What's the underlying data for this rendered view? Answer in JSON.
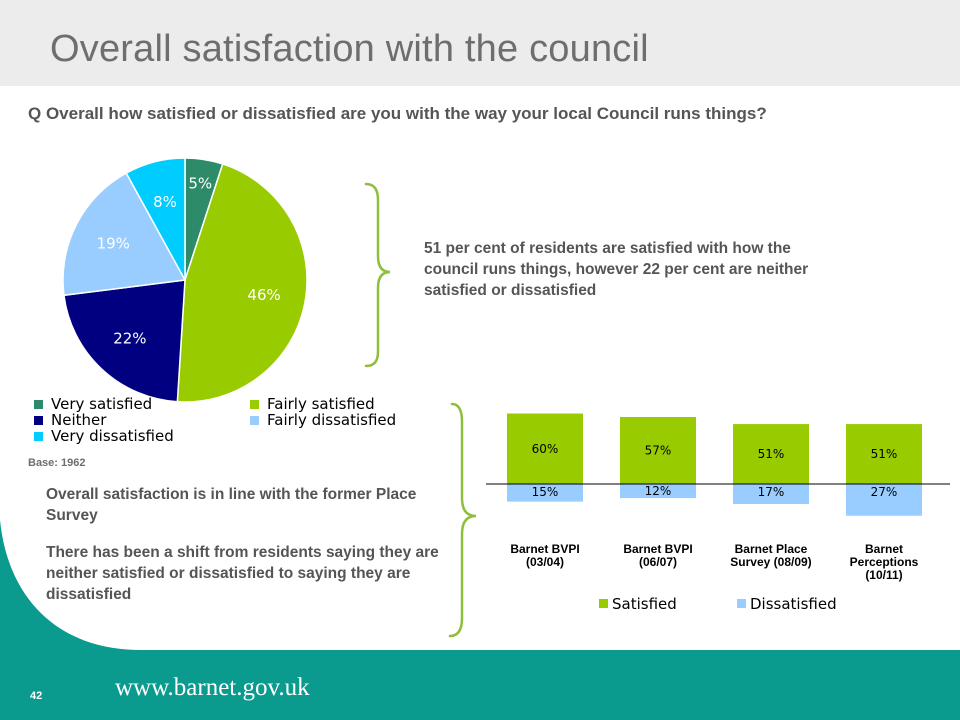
{
  "slide": {
    "title": "Overall satisfaction with the council",
    "question": "Q Overall how satisfied or dissatisfied are you with the way your local Council runs things?",
    "base": "Base: 1962",
    "summary": "51 per cent of residents are satisfied with how the council runs things, however 22 per cent are neither satisfied or dissatisfied",
    "notes": [
      "Overall satisfaction is in line with the former Place Survey",
      "There has been a shift from residents saying they are neither satisfied or dissatisfied to saying they are dissatisfied"
    ],
    "page_number": "42",
    "footer_url": "www.barnet.gov.uk"
  },
  "colors": {
    "very_satisfied": "#2e8b6a",
    "fairly_satisfied": "#99cc00",
    "neither": "#000080",
    "fairly_dissatisfied": "#99ccff",
    "very_dissatisfied": "#00ccff",
    "teal": "#0a9a8e",
    "brace": "#8fbf3a"
  },
  "chart_data": [
    {
      "type": "pie",
      "slices": [
        {
          "name": "Very satisfied",
          "value": 5,
          "label": "5%",
          "color": "#2e8b6a"
        },
        {
          "name": "Fairly satisfied",
          "value": 46,
          "label": "46%",
          "color": "#99cc00"
        },
        {
          "name": "Neither",
          "value": 22,
          "label": "22%",
          "color": "#000080"
        },
        {
          "name": "Fairly dissatisfied",
          "value": 19,
          "label": "19%",
          "color": "#99ccff"
        },
        {
          "name": "Very dissatisfied",
          "value": 8,
          "label": "8%",
          "color": "#00ccff"
        }
      ],
      "legend": [
        "Very satisfied",
        "Fairly satisfied",
        "Neither",
        "Fairly dissatisfied",
        "Very dissatisfied"
      ],
      "legend_position": "bottom"
    },
    {
      "type": "bar",
      "categories": [
        [
          "Barnet BVPI",
          "(03/04)"
        ],
        [
          "Barnet BVPI",
          "(06/07)"
        ],
        [
          "Barnet Place",
          "Survey (08/09)"
        ],
        [
          "Barnet",
          "Perceptions",
          "(10/11)"
        ]
      ],
      "series": [
        {
          "name": "Satisfied",
          "values": [
            60,
            57,
            51,
            51
          ],
          "labels": [
            "60%",
            "57%",
            "51%",
            "51%"
          ],
          "color": "#99cc00"
        },
        {
          "name": "Dissatisfied",
          "values": [
            15,
            12,
            17,
            27
          ],
          "labels": [
            "15%",
            "12%",
            "17%",
            "27%"
          ],
          "color": "#99ccff"
        }
      ],
      "layout": "diverging",
      "legend_position": "bottom"
    }
  ]
}
